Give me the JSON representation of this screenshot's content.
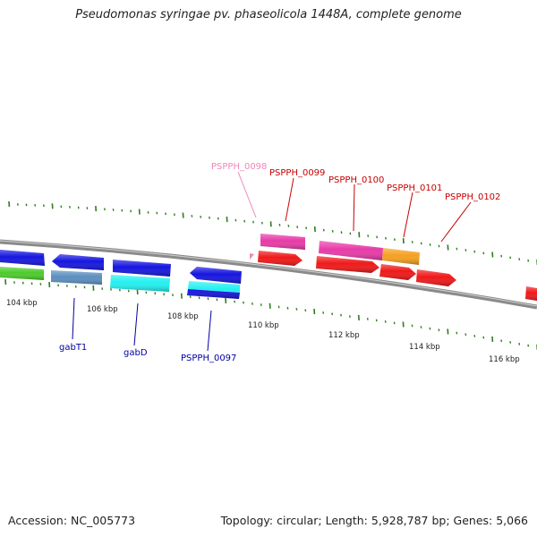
{
  "title": "Pseudomonas syringae pv. phaseolicola 1448A, complete genome",
  "footer": {
    "accession": "Accession: NC_005773",
    "summary": "Topology: circular; Length: 5,928,787 bp; Genes: 5,066"
  },
  "colors": {
    "backbone": "#8a8a8a",
    "ticks": "#2e7d1e",
    "forward_label": "#c80000",
    "reverse_label": "#0000a0",
    "faint_label": "#ee88bb"
  },
  "ticks": [
    {
      "label": "104 kbp"
    },
    {
      "label": "106 kbp"
    },
    {
      "label": "108 kbp"
    },
    {
      "label": "110 kbp"
    },
    {
      "label": "112 kbp"
    },
    {
      "label": "114 kbp"
    },
    {
      "label": "116 kbp"
    }
  ],
  "gene_labels": [
    {
      "text": "PSPPH_0098",
      "strand": "forward",
      "style": "faint"
    },
    {
      "text": "PSPPH_0099",
      "strand": "forward"
    },
    {
      "text": "PSPPH_0100",
      "strand": "forward"
    },
    {
      "text": "PSPPH_0101",
      "strand": "forward"
    },
    {
      "text": "PSPPH_0102",
      "strand": "forward"
    },
    {
      "text": "gabT1",
      "strand": "reverse"
    },
    {
      "text": "gabD",
      "strand": "reverse"
    },
    {
      "text": "PSPPH_0097",
      "strand": "reverse"
    }
  ],
  "features": [
    {
      "id": "rev-blue-1",
      "color": "#1515e0",
      "strand": "reverse"
    },
    {
      "id": "green-1",
      "color": "#4ccc2a",
      "strand": "reverse"
    },
    {
      "id": "rev-blue-2",
      "color": "#1515e0",
      "strand": "reverse"
    },
    {
      "id": "steelblue-gabT1",
      "color": "#5b8fc0",
      "strand": "reverse"
    },
    {
      "id": "rev-blue-3",
      "color": "#1515e0",
      "strand": "reverse"
    },
    {
      "id": "cyan-gabD",
      "color": "#22f0f0",
      "strand": "reverse"
    },
    {
      "id": "rev-blue-4",
      "color": "#1515e0",
      "strand": "reverse"
    },
    {
      "id": "cyan-0097",
      "color": "#22f0f0",
      "strand": "reverse"
    },
    {
      "id": "blue-0097",
      "color": "#1515e0",
      "strand": "reverse"
    },
    {
      "id": "pink-0098",
      "color": "#ee88bb",
      "strand": "forward"
    },
    {
      "id": "magenta-0099",
      "color": "#e83aa8",
      "strand": "forward"
    },
    {
      "id": "red-0099",
      "color": "#f01818",
      "strand": "forward"
    },
    {
      "id": "magenta-0100",
      "color": "#e83aa8",
      "strand": "forward"
    },
    {
      "id": "orange-0100",
      "color": "#f5a020",
      "strand": "forward"
    },
    {
      "id": "red-0100",
      "color": "#f01818",
      "strand": "forward"
    },
    {
      "id": "red-0101",
      "color": "#f01818",
      "strand": "forward"
    },
    {
      "id": "red-0102",
      "color": "#f01818",
      "strand": "forward"
    },
    {
      "id": "red-right",
      "color": "#f01818",
      "strand": "forward"
    }
  ]
}
